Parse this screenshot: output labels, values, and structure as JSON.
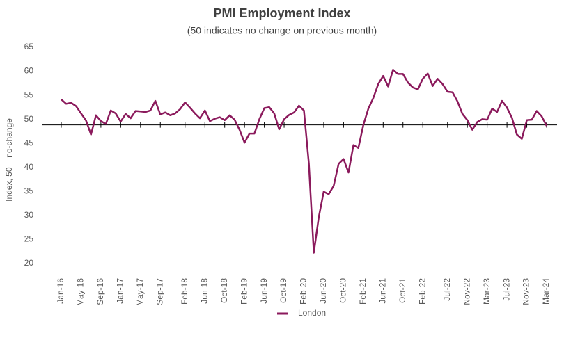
{
  "chart_data": {
    "type": "line",
    "title": "PMI Employment Index",
    "subtitle": "(50 indicates no change on previous month)",
    "y_label": "Index, 50 = no-change",
    "categories": [
      "Jan-16",
      null,
      null,
      null,
      "May-16",
      null,
      null,
      null,
      "Sep-16",
      null,
      null,
      null,
      "Jan-17",
      null,
      null,
      null,
      "May-17",
      null,
      null,
      null,
      "Sep-17",
      null,
      null,
      null,
      null,
      "Feb-18",
      null,
      null,
      null,
      "Jun-18",
      null,
      null,
      null,
      "Oct-18",
      null,
      null,
      null,
      "Feb-19",
      null,
      null,
      null,
      "Jun-19",
      null,
      null,
      null,
      "Oct-19",
      null,
      null,
      null,
      "Feb-20",
      null,
      null,
      null,
      "Jun-20",
      null,
      null,
      null,
      "Oct-20",
      null,
      null,
      null,
      "Feb-21",
      null,
      null,
      null,
      "Jun-21",
      null,
      null,
      null,
      "Oct-21",
      null,
      null,
      null,
      "Feb-22",
      null,
      null,
      null,
      null,
      "Jul-22",
      null,
      null,
      null,
      "Nov-22",
      null,
      null,
      null,
      "Mar-23",
      null,
      null,
      null,
      "Jul-23",
      null,
      null,
      null,
      "Nov-23",
      null,
      null,
      null,
      "Mar-24"
    ],
    "series": [
      {
        "name": "London",
        "color": "#8b1a5c",
        "values": [
          55.3,
          54.4,
          54.6,
          53.9,
          52.4,
          50.9,
          48.0,
          52.0,
          50.8,
          50.2,
          53.0,
          52.4,
          50.7,
          52.3,
          51.4,
          52.9,
          52.8,
          52.7,
          53.0,
          55.0,
          52.2,
          52.6,
          52.0,
          52.4,
          53.3,
          54.7,
          53.6,
          52.4,
          51.4,
          53.0,
          50.8,
          51.3,
          51.6,
          51.0,
          52.0,
          51.1,
          49.0,
          46.3,
          48.2,
          48.2,
          51.2,
          53.5,
          53.7,
          52.4,
          49.1,
          51.2,
          52.1,
          52.6,
          54.0,
          53.0,
          41.9,
          23.4,
          30.8,
          36.1,
          35.6,
          37.3,
          41.9,
          42.9,
          40.1,
          45.8,
          45.2,
          50.0,
          53.4,
          55.6,
          58.5,
          60.2,
          58.0,
          61.5,
          60.6,
          60.6,
          58.8,
          57.8,
          57.4,
          59.6,
          60.7,
          58.1,
          59.6,
          58.5,
          56.9,
          56.8,
          54.9,
          52.3,
          51.0,
          49.0,
          50.6,
          51.2,
          51.1,
          53.4,
          52.7,
          55.0,
          53.6,
          51.5,
          48.0,
          47.1,
          51.0,
          51.1,
          52.9,
          51.8,
          49.8
        ]
      }
    ],
    "ylim": [
      20,
      65
    ],
    "yticks": [
      20,
      25,
      30,
      35,
      40,
      45,
      50,
      55,
      60,
      65
    ],
    "x_axis_at": 50,
    "grid": false,
    "legend": "bottom"
  }
}
